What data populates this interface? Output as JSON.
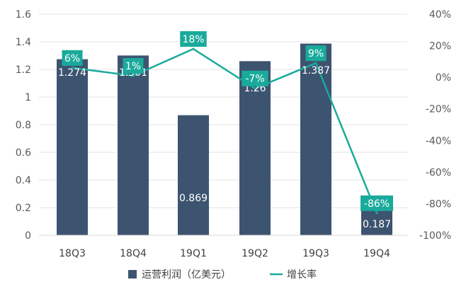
{
  "chart_data": {
    "type": "bar",
    "categories": [
      "18Q3",
      "18Q4",
      "19Q1",
      "19Q2",
      "19Q3",
      "19Q4"
    ],
    "series": [
      {
        "name": "运营利润（亿美元）",
        "type": "bar",
        "axis": "left",
        "values": [
          1.274,
          1.301,
          0.869,
          1.26,
          1.387,
          0.187
        ],
        "labels": [
          "1.274",
          "1.301",
          "0.869",
          "1.26",
          "1.387",
          "0.187"
        ],
        "color": "#3d5470"
      },
      {
        "name": "增长率",
        "type": "line",
        "axis": "right",
        "values": [
          6,
          1,
          18,
          -7,
          9,
          -86
        ],
        "labels": [
          "6%",
          "1%",
          "18%",
          "-7%",
          "9%",
          "-86%"
        ],
        "color": "#1aaa9b"
      }
    ],
    "y_left": {
      "min": 0,
      "max": 1.6,
      "ticks": [
        "0",
        "0.2",
        "0.4",
        "0.6",
        "0.8",
        "1",
        "1.2",
        "1.4",
        "1.6"
      ]
    },
    "y_right": {
      "min": -100,
      "max": 40,
      "ticks": [
        "-100%",
        "-80%",
        "-60%",
        "-40%",
        "-20%",
        "0%",
        "20%",
        "40%"
      ]
    },
    "grid": true,
    "legend_position": "bottom"
  },
  "colors": {
    "bar": "#3d5470",
    "line": "#1aaa9b",
    "grid": "#e3e3e3",
    "text": "#404040"
  }
}
